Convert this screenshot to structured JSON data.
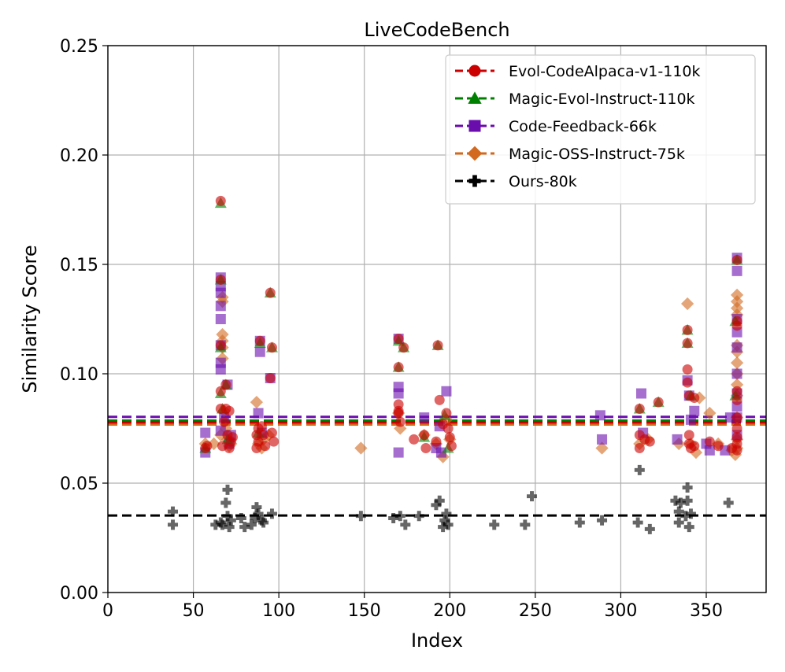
{
  "chart_data": {
    "type": "scatter",
    "title": "LiveCodeBench",
    "xlabel": "Index",
    "ylabel": "Similarity Score",
    "xlim": [
      0,
      385
    ],
    "ylim": [
      0,
      0.25
    ],
    "xticks": [
      0,
      50,
      100,
      150,
      200,
      250,
      300,
      350
    ],
    "xtick_labels": [
      "0",
      "50",
      "100",
      "150",
      "200",
      "250",
      "300",
      "350"
    ],
    "yticks": [
      0.0,
      0.05,
      0.1,
      0.15,
      0.2,
      0.25
    ],
    "ytick_labels": [
      "0.00",
      "0.05",
      "0.10",
      "0.15",
      "0.20",
      "0.25"
    ],
    "grid": true,
    "legend_position": "top-right",
    "series": [
      {
        "name": "Magic-OSS-Instruct-75k",
        "color": "#d2691e",
        "marker": "diamond",
        "mean": 0.0768,
        "points": [
          [
            57,
            0.068
          ],
          [
            62,
            0.068
          ],
          [
            66,
            0.072
          ],
          [
            67,
            0.133
          ],
          [
            67,
            0.135
          ],
          [
            67,
            0.118
          ],
          [
            67,
            0.115
          ],
          [
            67,
            0.112
          ],
          [
            67,
            0.107
          ],
          [
            68,
            0.083
          ],
          [
            69,
            0.075
          ],
          [
            70,
            0.07
          ],
          [
            71,
            0.067
          ],
          [
            72,
            0.068
          ],
          [
            87,
            0.087
          ],
          [
            88,
            0.068
          ],
          [
            90,
            0.066
          ],
          [
            91,
            0.07
          ],
          [
            94,
            0.072
          ],
          [
            148,
            0.066
          ],
          [
            170,
            0.082
          ],
          [
            171,
            0.075
          ],
          [
            185,
            0.072
          ],
          [
            192,
            0.068
          ],
          [
            196,
            0.062
          ],
          [
            198,
            0.079
          ],
          [
            200,
            0.07
          ],
          [
            289,
            0.066
          ],
          [
            311,
            0.068
          ],
          [
            316,
            0.07
          ],
          [
            334,
            0.068
          ],
          [
            339,
            0.132
          ],
          [
            341,
            0.068
          ],
          [
            344,
            0.064
          ],
          [
            346,
            0.089
          ],
          [
            352,
            0.082
          ],
          [
            357,
            0.068
          ],
          [
            365,
            0.065
          ],
          [
            367,
            0.063
          ],
          [
            368,
            0.13
          ],
          [
            368,
            0.136
          ],
          [
            368,
            0.133
          ],
          [
            368,
            0.127
          ],
          [
            368,
            0.113
          ],
          [
            368,
            0.11
          ],
          [
            368,
            0.105
          ],
          [
            368,
            0.1
          ],
          [
            368,
            0.095
          ],
          [
            368,
            0.09
          ],
          [
            368,
            0.08
          ],
          [
            368,
            0.07
          ],
          [
            368,
            0.066
          ]
        ]
      },
      {
        "name": "Code-Feedback-66k",
        "color": "#6a0dad",
        "marker": "square",
        "mean": 0.0803,
        "points": [
          [
            57,
            0.073
          ],
          [
            57,
            0.064
          ],
          [
            66,
            0.144
          ],
          [
            66,
            0.14
          ],
          [
            66,
            0.137
          ],
          [
            66,
            0.131
          ],
          [
            66,
            0.125
          ],
          [
            66,
            0.113
          ],
          [
            66,
            0.105
          ],
          [
            66,
            0.102
          ],
          [
            66,
            0.074
          ],
          [
            68,
            0.08
          ],
          [
            70,
            0.095
          ],
          [
            71,
            0.068
          ],
          [
            72,
            0.072
          ],
          [
            88,
            0.082
          ],
          [
            89,
            0.115
          ],
          [
            89,
            0.11
          ],
          [
            90,
            0.073
          ],
          [
            95,
            0.098
          ],
          [
            170,
            0.116
          ],
          [
            170,
            0.094
          ],
          [
            170,
            0.091
          ],
          [
            170,
            0.064
          ],
          [
            185,
            0.08
          ],
          [
            192,
            0.066
          ],
          [
            194,
            0.076
          ],
          [
            195,
            0.064
          ],
          [
            198,
            0.092
          ],
          [
            288,
            0.081
          ],
          [
            289,
            0.07
          ],
          [
            312,
            0.091
          ],
          [
            313,
            0.073
          ],
          [
            333,
            0.07
          ],
          [
            339,
            0.097
          ],
          [
            340,
            0.09
          ],
          [
            341,
            0.079
          ],
          [
            343,
            0.083
          ],
          [
            350,
            0.068
          ],
          [
            352,
            0.065
          ],
          [
            361,
            0.065
          ],
          [
            364,
            0.08
          ],
          [
            368,
            0.153
          ],
          [
            368,
            0.147
          ],
          [
            368,
            0.125
          ],
          [
            368,
            0.119
          ],
          [
            368,
            0.112
          ],
          [
            368,
            0.1
          ],
          [
            368,
            0.091
          ],
          [
            368,
            0.085
          ],
          [
            368,
            0.08
          ],
          [
            368,
            0.072
          ]
        ]
      },
      {
        "name": "Magic-Evol-Instruct-110k",
        "color": "#008000",
        "marker": "triangle",
        "mean": 0.0786,
        "points": [
          [
            57,
            0.066
          ],
          [
            66,
            0.178
          ],
          [
            66,
            0.143
          ],
          [
            66,
            0.112
          ],
          [
            66,
            0.091
          ],
          [
            67,
            0.084
          ],
          [
            69,
            0.095
          ],
          [
            70,
            0.07
          ],
          [
            88,
            0.073
          ],
          [
            89,
            0.114
          ],
          [
            95,
            0.137
          ],
          [
            96,
            0.112
          ],
          [
            170,
            0.115
          ],
          [
            170,
            0.103
          ],
          [
            173,
            0.112
          ],
          [
            185,
            0.071
          ],
          [
            193,
            0.113
          ],
          [
            197,
            0.081
          ],
          [
            199,
            0.066
          ],
          [
            311,
            0.084
          ],
          [
            322,
            0.087
          ],
          [
            339,
            0.12
          ],
          [
            339,
            0.114
          ],
          [
            341,
            0.09
          ],
          [
            367,
            0.124
          ],
          [
            367,
            0.09
          ],
          [
            368,
            0.152
          ]
        ]
      },
      {
        "name": "Evol-CodeAlpaca-v1-110k",
        "color": "#cc0000",
        "marker": "circle",
        "mean": 0.0778,
        "points": [
          [
            57,
            0.066
          ],
          [
            58,
            0.067
          ],
          [
            66,
            0.179
          ],
          [
            66,
            0.143
          ],
          [
            66,
            0.113
          ],
          [
            66,
            0.092
          ],
          [
            66,
            0.084
          ],
          [
            67,
            0.067
          ],
          [
            68,
            0.078
          ],
          [
            69,
            0.095
          ],
          [
            69,
            0.084
          ],
          [
            70,
            0.072
          ],
          [
            71,
            0.066
          ],
          [
            71,
            0.083
          ],
          [
            72,
            0.069
          ],
          [
            73,
            0.071
          ],
          [
            87,
            0.066
          ],
          [
            87,
            0.072
          ],
          [
            88,
            0.075
          ],
          [
            88,
            0.069
          ],
          [
            89,
            0.115
          ],
          [
            90,
            0.076
          ],
          [
            91,
            0.072
          ],
          [
            92,
            0.067
          ],
          [
            95,
            0.137
          ],
          [
            95,
            0.098
          ],
          [
            96,
            0.112
          ],
          [
            96,
            0.073
          ],
          [
            97,
            0.069
          ],
          [
            170,
            0.116
          ],
          [
            170,
            0.103
          ],
          [
            170,
            0.086
          ],
          [
            170,
            0.083
          ],
          [
            170,
            0.082
          ],
          [
            171,
            0.078
          ],
          [
            173,
            0.112
          ],
          [
            179,
            0.07
          ],
          [
            185,
            0.072
          ],
          [
            186,
            0.066
          ],
          [
            192,
            0.069
          ],
          [
            193,
            0.113
          ],
          [
            194,
            0.088
          ],
          [
            196,
            0.077
          ],
          [
            198,
            0.082
          ],
          [
            199,
            0.075
          ],
          [
            200,
            0.071
          ],
          [
            201,
            0.067
          ],
          [
            311,
            0.084
          ],
          [
            311,
            0.072
          ],
          [
            311,
            0.066
          ],
          [
            314,
            0.07
          ],
          [
            317,
            0.069
          ],
          [
            322,
            0.087
          ],
          [
            339,
            0.12
          ],
          [
            339,
            0.114
          ],
          [
            339,
            0.102
          ],
          [
            339,
            0.096
          ],
          [
            340,
            0.09
          ],
          [
            340,
            0.072
          ],
          [
            340,
            0.068
          ],
          [
            341,
            0.066
          ],
          [
            343,
            0.089
          ],
          [
            343,
            0.067
          ],
          [
            352,
            0.069
          ],
          [
            357,
            0.067
          ],
          [
            365,
            0.066
          ],
          [
            368,
            0.152
          ],
          [
            368,
            0.124
          ],
          [
            368,
            0.122
          ],
          [
            368,
            0.092
          ],
          [
            368,
            0.088
          ],
          [
            368,
            0.08
          ],
          [
            368,
            0.075
          ],
          [
            368,
            0.071
          ],
          [
            368,
            0.068
          ],
          [
            368,
            0.065
          ]
        ]
      },
      {
        "name": "Ours-80k",
        "color": "#000000",
        "marker": "plus",
        "mean": 0.0352,
        "points": [
          [
            38,
            0.037
          ],
          [
            38,
            0.031
          ],
          [
            63,
            0.031
          ],
          [
            66,
            0.032
          ],
          [
            67,
            0.031
          ],
          [
            69,
            0.041
          ],
          [
            70,
            0.047
          ],
          [
            70,
            0.035
          ],
          [
            71,
            0.03
          ],
          [
            72,
            0.033
          ],
          [
            78,
            0.034
          ],
          [
            80,
            0.03
          ],
          [
            84,
            0.031
          ],
          [
            86,
            0.034
          ],
          [
            87,
            0.039
          ],
          [
            88,
            0.036
          ],
          [
            90,
            0.033
          ],
          [
            91,
            0.032
          ],
          [
            96,
            0.036
          ],
          [
            148,
            0.035
          ],
          [
            167,
            0.034
          ],
          [
            171,
            0.035
          ],
          [
            174,
            0.031
          ],
          [
            182,
            0.035
          ],
          [
            192,
            0.04
          ],
          [
            194,
            0.042
          ],
          [
            196,
            0.03
          ],
          [
            197,
            0.033
          ],
          [
            198,
            0.036
          ],
          [
            199,
            0.031
          ],
          [
            226,
            0.031
          ],
          [
            244,
            0.031
          ],
          [
            248,
            0.044
          ],
          [
            276,
            0.032
          ],
          [
            289,
            0.033
          ],
          [
            310,
            0.032
          ],
          [
            311,
            0.056
          ],
          [
            317,
            0.029
          ],
          [
            332,
            0.042
          ],
          [
            334,
            0.037
          ],
          [
            334,
            0.032
          ],
          [
            335,
            0.041
          ],
          [
            338,
            0.035
          ],
          [
            339,
            0.048
          ],
          [
            339,
            0.042
          ],
          [
            340,
            0.03
          ],
          [
            341,
            0.036
          ],
          [
            363,
            0.041
          ]
        ]
      }
    ],
    "legend_order": [
      "Evol-CodeAlpaca-v1-110k",
      "Magic-Evol-Instruct-110k",
      "Code-Feedback-66k",
      "Magic-OSS-Instruct-75k",
      "Ours-80k"
    ]
  }
}
